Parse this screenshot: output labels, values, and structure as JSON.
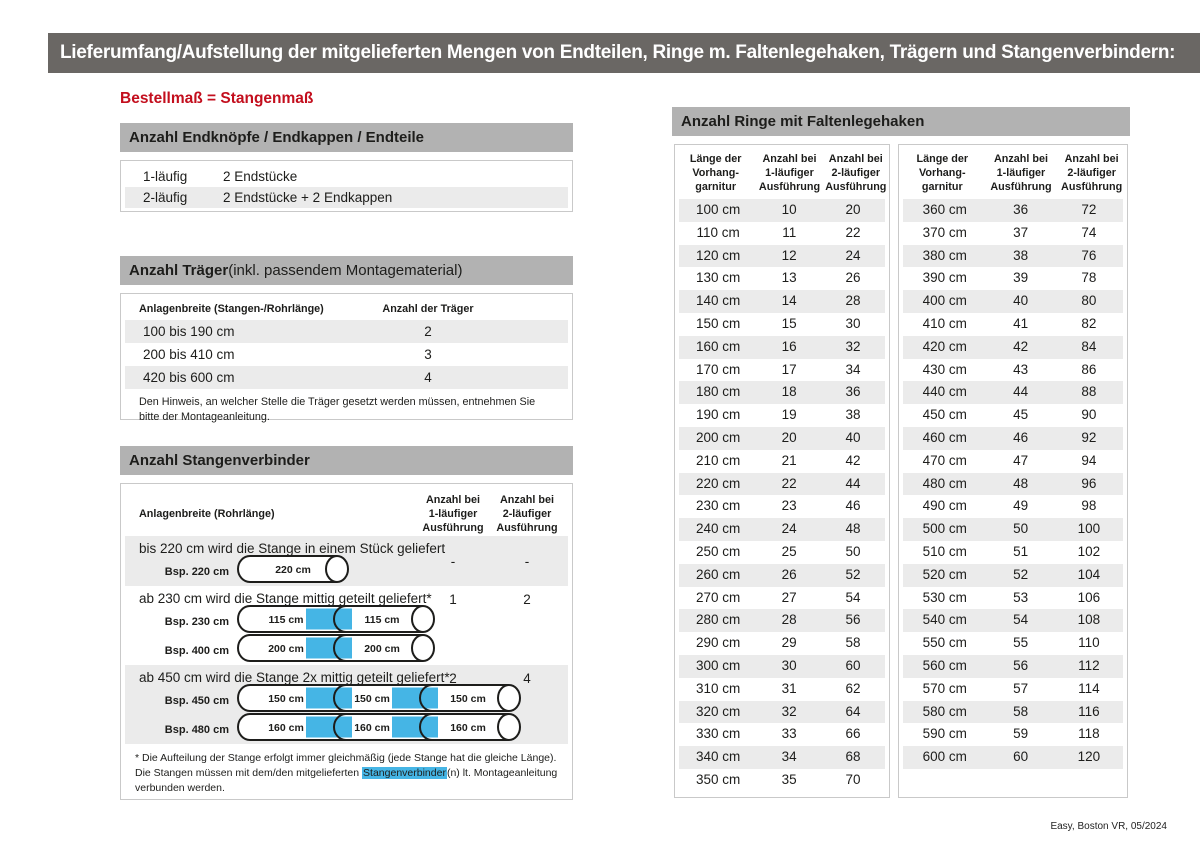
{
  "banner": {
    "title": "Lieferumfang/Aufstellung der mitgelieferten Mengen von Endteilen, Ringe m. Faltenlegehaken, Trägern und Stangenverbindern:"
  },
  "subtitle": "Bestellmaß = Stangenmaß",
  "colors": {
    "banner_bg": "#6a6764",
    "section_header_bg": "#b2b2b2",
    "row_alt": "#ebebeb",
    "accent_red": "#c30e1d",
    "connector_blue": "#45b5e5",
    "border": "#c9c9c9",
    "text": "#1d1d1b"
  },
  "endteile": {
    "header": "Anzahl Endknöpfe / Endkappen / Endteile",
    "rows": [
      {
        "label": "1-läufig",
        "value": "2 Endstücke"
      },
      {
        "label": "2-läufig",
        "value": "2 Endstücke + 2 Endkappen"
      }
    ]
  },
  "traeger": {
    "header_bold": "Anzahl Träger",
    "header_rest": " (inkl. passendem Montagematerial)",
    "col1": "Anlagenbreite (Stangen-/Rohrlänge)",
    "col2": "Anzahl der Träger",
    "rows": [
      {
        "range": "100 bis 190 cm",
        "count": "2"
      },
      {
        "range": "200 bis 410 cm",
        "count": "3"
      },
      {
        "range": "420 bis 600 cm",
        "count": "4"
      }
    ],
    "note": "Den Hinweis, an welcher Stelle die Träger gesetzt werden müssen, entnehmen Sie bitte der Montageanleitung."
  },
  "verbinder": {
    "header": "Anzahl Stangenverbinder",
    "col1": "Anlagenbreite (Rohrlänge)",
    "col2_lines": [
      "Anzahl bei",
      "1-läufiger",
      "Ausführung"
    ],
    "col3_lines": [
      "Anzahl bei",
      "2-läufiger",
      "Ausführung"
    ],
    "rows": [
      {
        "text": "bis 220 cm wird die Stange in einem Stück geliefert",
        "v1": "-",
        "v2": "-",
        "examples": [
          {
            "label": "Bsp. 220 cm",
            "segments": [
              "220 cm"
            ]
          }
        ]
      },
      {
        "text": "ab 230 cm wird die Stange mittig geteilt geliefert*",
        "v1": "1",
        "v2": "2",
        "examples": [
          {
            "label": "Bsp. 230 cm",
            "segments": [
              "115 cm",
              "115 cm"
            ]
          },
          {
            "label": "Bsp. 400 cm",
            "segments": [
              "200 cm",
              "200 cm"
            ]
          }
        ]
      },
      {
        "text": "ab 450 cm wird die Stange 2x mittig geteilt geliefert*",
        "v1": "2",
        "v2": "4",
        "examples": [
          {
            "label": "Bsp. 450 cm",
            "segments": [
              "150 cm",
              "150 cm",
              "150 cm"
            ]
          },
          {
            "label": "Bsp. 480 cm",
            "segments": [
              "160 cm",
              "160 cm",
              "160 cm"
            ]
          }
        ]
      }
    ],
    "footnote_pre": "* Die Aufteilung der Stange erfolgt immer gleichmäßig (jede Stange hat die gleiche Länge). Die Stangen müssen mit dem/den mitgelieferten ",
    "footnote_highlight": "Stangenverbinder",
    "footnote_post": "(n) lt. Montageanleitung verbunden werden."
  },
  "ringe": {
    "header": "Anzahl Ringe mit Faltenlegehaken",
    "col_headers": [
      [
        "Länge der",
        "Vorhang-",
        "garnitur"
      ],
      [
        "Anzahl bei",
        "1-läufiger",
        "Ausführung"
      ],
      [
        "Anzahl bei",
        "2-läufiger",
        "Ausführung"
      ]
    ],
    "table1": [
      [
        "100 cm",
        "10",
        "20"
      ],
      [
        "110 cm",
        "11",
        "22"
      ],
      [
        "120 cm",
        "12",
        "24"
      ],
      [
        "130 cm",
        "13",
        "26"
      ],
      [
        "140 cm",
        "14",
        "28"
      ],
      [
        "150 cm",
        "15",
        "30"
      ],
      [
        "160 cm",
        "16",
        "32"
      ],
      [
        "170 cm",
        "17",
        "34"
      ],
      [
        "180 cm",
        "18",
        "36"
      ],
      [
        "190 cm",
        "19",
        "38"
      ],
      [
        "200 cm",
        "20",
        "40"
      ],
      [
        "210 cm",
        "21",
        "42"
      ],
      [
        "220 cm",
        "22",
        "44"
      ],
      [
        "230 cm",
        "23",
        "46"
      ],
      [
        "240 cm",
        "24",
        "48"
      ],
      [
        "250 cm",
        "25",
        "50"
      ],
      [
        "260 cm",
        "26",
        "52"
      ],
      [
        "270 cm",
        "27",
        "54"
      ],
      [
        "280 cm",
        "28",
        "56"
      ],
      [
        "290 cm",
        "29",
        "58"
      ],
      [
        "300 cm",
        "30",
        "60"
      ],
      [
        "310 cm",
        "31",
        "62"
      ],
      [
        "320 cm",
        "32",
        "64"
      ],
      [
        "330 cm",
        "33",
        "66"
      ],
      [
        "340 cm",
        "34",
        "68"
      ],
      [
        "350 cm",
        "35",
        "70"
      ]
    ],
    "table2": [
      [
        "360 cm",
        "36",
        "72"
      ],
      [
        "370 cm",
        "37",
        "74"
      ],
      [
        "380 cm",
        "38",
        "76"
      ],
      [
        "390 cm",
        "39",
        "78"
      ],
      [
        "400 cm",
        "40",
        "80"
      ],
      [
        "410 cm",
        "41",
        "82"
      ],
      [
        "420 cm",
        "42",
        "84"
      ],
      [
        "430 cm",
        "43",
        "86"
      ],
      [
        "440 cm",
        "44",
        "88"
      ],
      [
        "450 cm",
        "45",
        "90"
      ],
      [
        "460 cm",
        "46",
        "92"
      ],
      [
        "470 cm",
        "47",
        "94"
      ],
      [
        "480 cm",
        "48",
        "96"
      ],
      [
        "490 cm",
        "49",
        "98"
      ],
      [
        "500 cm",
        "50",
        "100"
      ],
      [
        "510 cm",
        "51",
        "102"
      ],
      [
        "520 cm",
        "52",
        "104"
      ],
      [
        "530 cm",
        "53",
        "106"
      ],
      [
        "540 cm",
        "54",
        "108"
      ],
      [
        "550 cm",
        "55",
        "110"
      ],
      [
        "560 cm",
        "56",
        "112"
      ],
      [
        "570 cm",
        "57",
        "114"
      ],
      [
        "580 cm",
        "58",
        "116"
      ],
      [
        "590 cm",
        "59",
        "118"
      ],
      [
        "600 cm",
        "60",
        "120"
      ]
    ]
  },
  "footer": "Easy, Boston VR, 05/2024"
}
